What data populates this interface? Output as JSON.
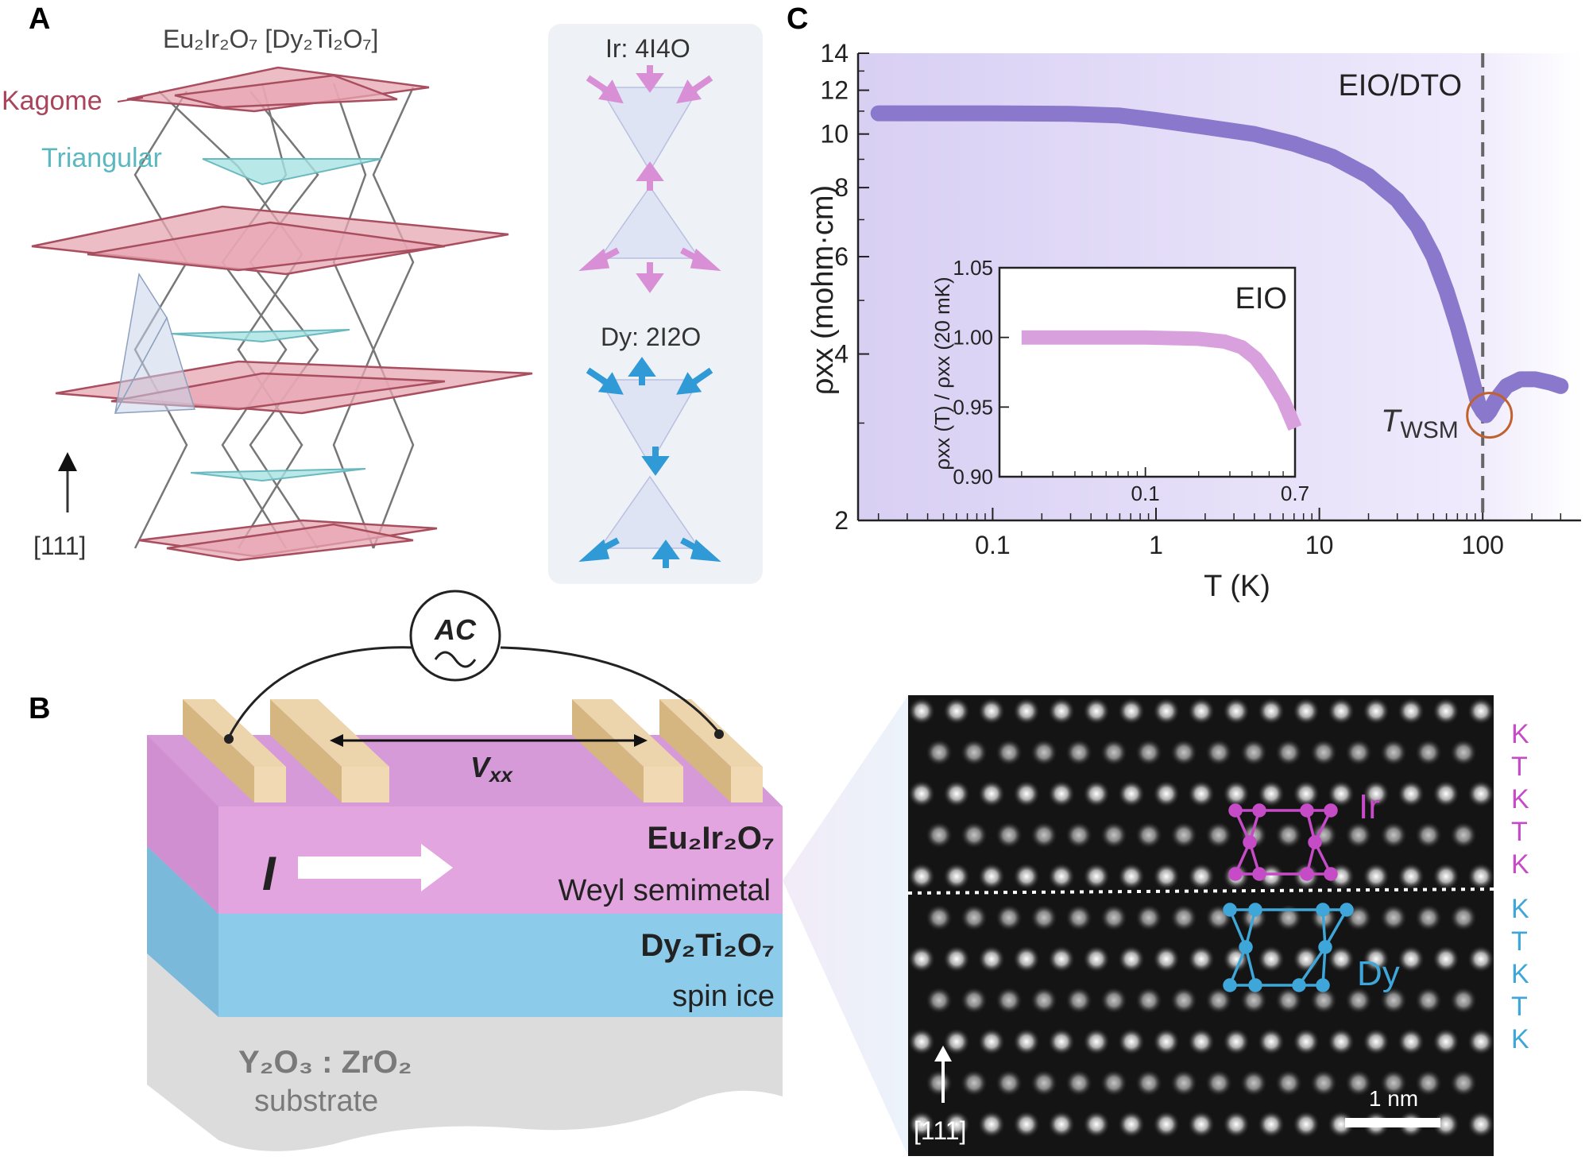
{
  "panels": {
    "a": "A",
    "b": "B",
    "c": "C"
  },
  "panel_a": {
    "title_formula": "Eu₂Ir₂O₇ [Dy₂Ti₂O₇]",
    "kagome": "Kagome",
    "triangular": "Triangular",
    "direction": "[111]",
    "ir_config": "Ir: 4I4O",
    "dy_config": "Dy: 2I2O",
    "colors": {
      "kagome": "#d98a98",
      "triangular": "#9fdce0",
      "ir_arrow": "#d88fd6",
      "dy_arrow": "#2f9ad6"
    }
  },
  "panel_b": {
    "ac": "AC",
    "vxx": "V",
    "vxx_sub": "xx",
    "current": "I",
    "layer1_formula": "Eu₂Ir₂O₇",
    "layer1_desc": "Weyl semimetal",
    "layer2_formula": "Dy₂Ti₂O₇",
    "layer2_desc": "spin ice",
    "substrate_formula": "Y₂O₃ : ZrO₂",
    "substrate_desc": "substrate",
    "stem_ir": "Ir",
    "stem_dy": "Dy",
    "stem_direction": "[111]",
    "scalebar": "1 nm",
    "stack_top": [
      "K",
      "T",
      "K",
      "T",
      "K"
    ],
    "stack_bottom": [
      "K",
      "T",
      "K",
      "T",
      "K"
    ],
    "colors": {
      "eio": "#e3a5e0",
      "dto": "#8ccbea",
      "substrate": "#dedede",
      "contact": "#e6c89a"
    }
  },
  "chart_data": [
    {
      "type": "line",
      "title": "",
      "label": "EIO/DTO",
      "xlabel": "T (K)",
      "ylabel": "ρxx (mohm·cm)",
      "xscale": "log",
      "yscale": "log",
      "xlim": [
        0.015,
        400
      ],
      "ylim": [
        2,
        14
      ],
      "xticks": [
        0.1,
        1,
        10,
        100
      ],
      "xtick_labels": [
        "0.1",
        "1",
        "10",
        "100"
      ],
      "yticks": [
        2,
        4,
        6,
        8,
        10,
        12,
        14
      ],
      "ytick_labels": [
        "2",
        "4",
        "6",
        "8",
        "10",
        "12",
        "14"
      ],
      "vline": {
        "x": 100,
        "style": "dashed"
      },
      "annotation": {
        "text": "T",
        "sub": "WSM",
        "x": 110,
        "y": 3.1
      },
      "series": [
        {
          "name": "EIO/DTO",
          "color": "#8a78cc",
          "x": [
            0.02,
            0.05,
            0.1,
            0.3,
            0.6,
            1,
            2,
            4,
            7,
            12,
            20,
            30,
            40,
            50,
            60,
            70,
            80,
            88,
            94,
            100,
            105,
            110,
            120,
            140,
            170,
            210,
            260,
            300
          ],
          "y": [
            10.9,
            10.9,
            10.9,
            10.88,
            10.8,
            10.6,
            10.3,
            10.0,
            9.6,
            9.1,
            8.4,
            7.6,
            6.8,
            6.0,
            5.2,
            4.5,
            3.9,
            3.5,
            3.25,
            3.15,
            3.1,
            3.15,
            3.3,
            3.5,
            3.6,
            3.6,
            3.55,
            3.5
          ]
        }
      ]
    },
    {
      "type": "line",
      "label": "EIO",
      "xlabel": "",
      "ylabel": "ρxx (T) / ρxx (20 mK)",
      "xscale": "log",
      "xlim": [
        0.015,
        0.7
      ],
      "ylim": [
        0.9,
        1.05
      ],
      "xticks": [
        0.1,
        0.7
      ],
      "xtick_labels": [
        "0.1",
        "0.7"
      ],
      "yticks": [
        0.9,
        0.95,
        1.0,
        1.05
      ],
      "ytick_labels": [
        "0.90",
        "0.95",
        "1.00",
        "1.05"
      ],
      "series": [
        {
          "name": "EIO",
          "color": "#d9a0de",
          "x": [
            0.02,
            0.05,
            0.1,
            0.2,
            0.28,
            0.35,
            0.42,
            0.5,
            0.6,
            0.7
          ],
          "y": [
            1.0,
            1.0,
            1.0,
            0.999,
            0.997,
            0.993,
            0.985,
            0.972,
            0.955,
            0.935
          ]
        }
      ]
    }
  ]
}
